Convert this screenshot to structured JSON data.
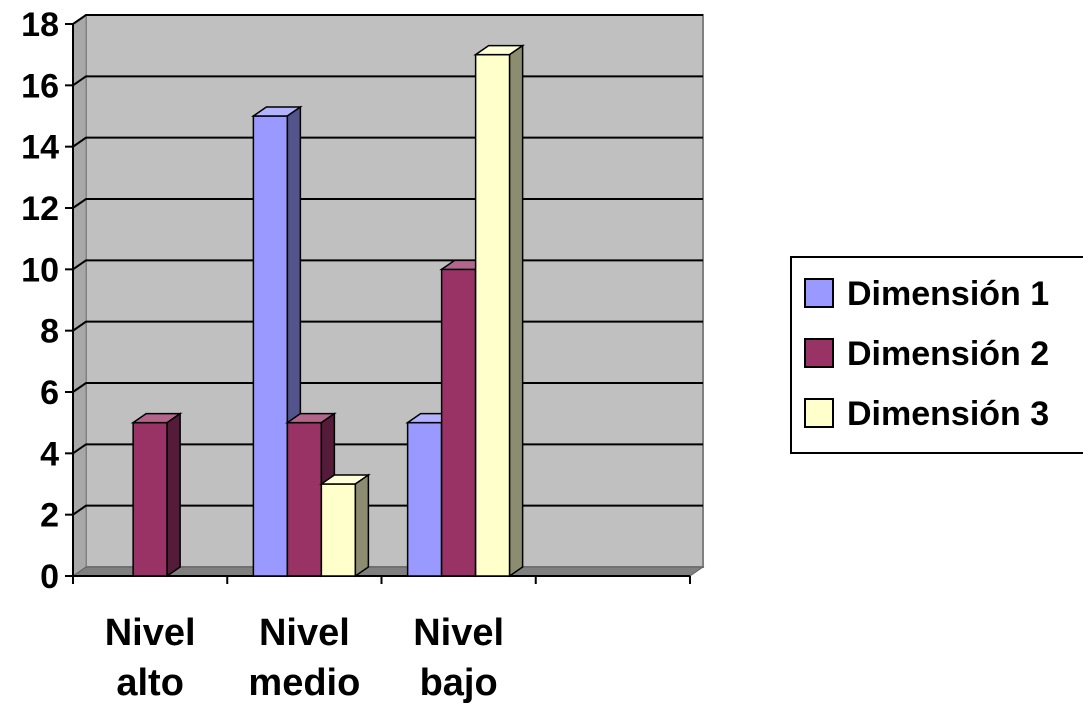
{
  "chart_data": {
    "type": "bar",
    "style": "3d-clustered-column",
    "categories": [
      [
        "Nivel",
        "alto"
      ],
      [
        "Nivel",
        "medio"
      ],
      [
        "Nivel",
        "bajo"
      ],
      [
        "",
        ""
      ]
    ],
    "series": [
      {
        "name": "Dimensión 1",
        "color": "#9999FF",
        "values": [
          0,
          15,
          5,
          0
        ]
      },
      {
        "name": "Dimensión 2",
        "color": "#993366",
        "values": [
          5,
          5,
          10,
          0
        ]
      },
      {
        "name": "Dimensión 3",
        "color": "#FFFFCC",
        "values": [
          0,
          3,
          17,
          0
        ]
      }
    ],
    "ylim": [
      0,
      18
    ],
    "yticks": [
      0,
      2,
      4,
      6,
      8,
      10,
      12,
      14,
      16,
      18
    ],
    "grid": true,
    "plot_background": "#C0C0C0",
    "legend": "right"
  }
}
